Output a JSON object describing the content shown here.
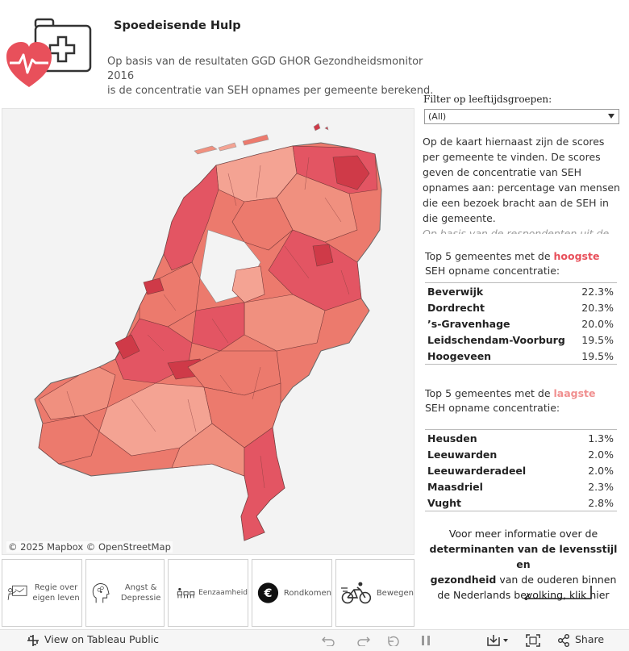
{
  "header": {
    "title": "Spoedeisende Hulp",
    "subtitle_line1": "Op basis van de resultaten GGD GHOR Gezondheidsmonitor 2016",
    "subtitle_line2": "is de concentratie van SEH opnames per gemeente berekend."
  },
  "map": {
    "attribution": "© 2025 Mapbox  © OpenStreetMap"
  },
  "filter": {
    "label": "Filter op leeftijdsgroepen:",
    "selected": "(All)"
  },
  "description": {
    "text": "Op de kaart hiernaast zijn de scores per gemeente te vinden. De scores geven de concentratie van SEH opnames aan: percentage van mensen die een bezoek bracht aan de SEH in die gemeente.",
    "faded": "Op basis van de respondenten uit de GEMON"
  },
  "top_high": {
    "prefix": "Top 5 gemeentes met de ",
    "highlight": "hoogste",
    "suffix": " SEH opname concentratie:",
    "rows": [
      {
        "name": "Beverwijk",
        "value": "22.3%"
      },
      {
        "name": "Dordrecht",
        "value": "20.3%"
      },
      {
        "name": "’s-Gravenhage",
        "value": "20.0%"
      },
      {
        "name": "Leidschendam-Voorburg",
        "value": "19.5%"
      },
      {
        "name": "Hoogeveen",
        "value": "19.5%"
      }
    ]
  },
  "top_low": {
    "prefix": "Top 5 gemeentes met de ",
    "highlight": "laagste",
    "suffix": " SEH opname concentratie:",
    "rows": [
      {
        "name": "Heusden",
        "value": "1.3%"
      },
      {
        "name": "Leeuwarden",
        "value": "2.0%"
      },
      {
        "name": "Leeuwarderadeel",
        "value": "2.0%"
      },
      {
        "name": "Maasdriel",
        "value": "2.3%"
      },
      {
        "name": "Vught",
        "value": "2.8%"
      }
    ]
  },
  "more_info": {
    "line1": "Voor meer informatie over de",
    "bold1": "determinanten van de levensstijl en",
    "bold2": "gezondheid",
    "line3": " van de ouderen binnen",
    "line4": "de Nederlands bevolking, klik hier"
  },
  "nav_tiles": [
    {
      "label": "Regie over eigen leven",
      "icon": "presentation-icon"
    },
    {
      "label": "Angst & Depressie",
      "icon": "head-clouds-icon"
    },
    {
      "label": "Eenzaamheid",
      "icon": "chairs-icon"
    },
    {
      "label": "Rondkomen",
      "icon": "euro-icon"
    },
    {
      "label": "Bewegen",
      "icon": "cyclist-icon"
    }
  ],
  "toolbar": {
    "view_label": "View on Tableau Public",
    "share_label": "Share"
  },
  "colors": {
    "high": "#e8505b",
    "low": "#f08f8f",
    "map_dark": "#cf3a48",
    "map_light": "#f4a393"
  }
}
